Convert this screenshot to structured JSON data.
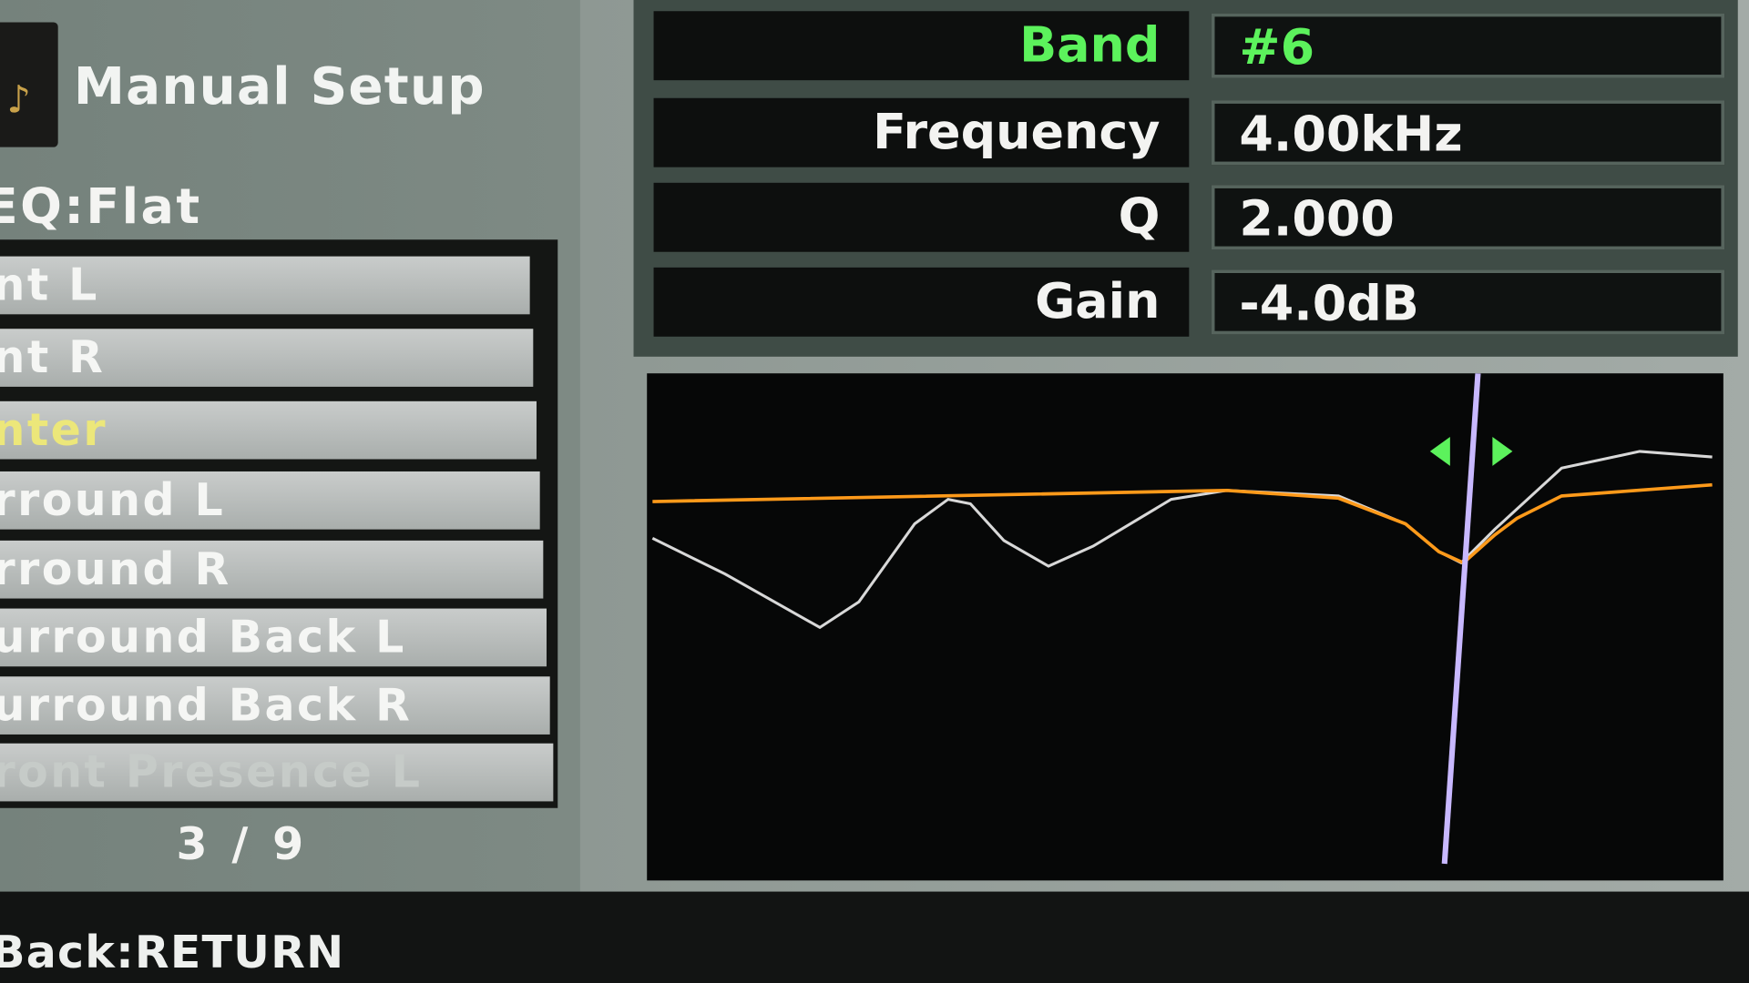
{
  "header": {
    "title": "Manual Setup",
    "preset": "EQ:Flat",
    "logo_icon": "speaker-glasses-icon"
  },
  "channels": [
    {
      "label": "Front L",
      "visible": "nt L"
    },
    {
      "label": "Front R",
      "visible": "nt R"
    },
    {
      "label": "Center",
      "visible": "nter",
      "selected": true
    },
    {
      "label": "Surround L",
      "visible": "rround L"
    },
    {
      "label": "Surround R",
      "visible": "rround R"
    },
    {
      "label": "Surround Back L",
      "visible": "urround Back L"
    },
    {
      "label": "Surround Back R",
      "visible": "urround Back R"
    },
    {
      "label": "Front Presence L",
      "visible": "ront Presence L"
    }
  ],
  "pagination": "3 / 9",
  "footer": {
    "hint": "Back:RETURN"
  },
  "params": [
    {
      "label": "Band",
      "value": "#6"
    },
    {
      "label": "Frequency",
      "value": "4.00kHz"
    },
    {
      "label": "Q",
      "value": "2.000"
    },
    {
      "label": "Gain",
      "value": "-4.0dB"
    }
  ],
  "colors": {
    "accent": "#5cf25c",
    "selected": "#ece77a",
    "curve_total": "#ff9a1a",
    "curve_band": "#d8d8d8",
    "cursor": "#c8b8ff"
  },
  "graph": {
    "cursor_icons": [
      "arrow-left-icon",
      "arrow-right-icon"
    ]
  }
}
